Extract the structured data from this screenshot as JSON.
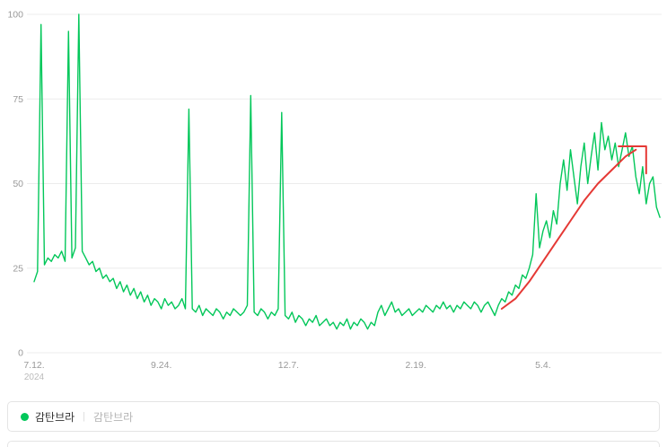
{
  "chart": {
    "yticks": [
      0,
      25,
      50,
      75,
      100
    ],
    "xticks": [
      {
        "label": "7.12.",
        "day": 0,
        "sublabel": "2024"
      },
      {
        "label": "9.24.",
        "day": 74,
        "sublabel": ""
      },
      {
        "label": "12.7.",
        "day": 148,
        "sublabel": ""
      },
      {
        "label": "2.19.",
        "day": 222,
        "sublabel": ""
      },
      {
        "label": "5.4.",
        "day": 296,
        "sublabel": ""
      }
    ],
    "grid_color": "#ececec",
    "axis_text_color": "#999999",
    "sub_text_color": "#bbbbbb"
  },
  "chart_data": {
    "type": "line",
    "title": "",
    "xlabel": "",
    "ylabel": "",
    "ylim": [
      0,
      100
    ],
    "x_range_days": 365,
    "x_start_label": "7.12.2024",
    "step_days": 2,
    "grid": true,
    "legend_position": "bottom",
    "series": [
      {
        "name": "감탄브라",
        "color": "#03c75a",
        "values": [
          21,
          24,
          97,
          26,
          28,
          27,
          29,
          28,
          30,
          27,
          95,
          28,
          31,
          100,
          30,
          28,
          26,
          27,
          24,
          25,
          22,
          23,
          21,
          22,
          19,
          21,
          18,
          20,
          17,
          19,
          16,
          18,
          15,
          17,
          14,
          16,
          15,
          13,
          16,
          14,
          15,
          13,
          14,
          16,
          13,
          72,
          13,
          12,
          14,
          11,
          13,
          12,
          11,
          13,
          12,
          10,
          12,
          11,
          13,
          12,
          11,
          12,
          14,
          76,
          12,
          11,
          13,
          12,
          10,
          12,
          11,
          13,
          71,
          11,
          10,
          12,
          9,
          11,
          10,
          8,
          10,
          9,
          11,
          8,
          9,
          10,
          8,
          9,
          7,
          9,
          8,
          10,
          7,
          9,
          8,
          10,
          9,
          7,
          9,
          8,
          12,
          14,
          11,
          13,
          15,
          12,
          13,
          11,
          12,
          13,
          11,
          12,
          13,
          12,
          14,
          13,
          12,
          14,
          13,
          15,
          13,
          14,
          12,
          14,
          13,
          15,
          14,
          13,
          15,
          14,
          12,
          14,
          15,
          13,
          11,
          14,
          16,
          15,
          18,
          17,
          20,
          19,
          23,
          22,
          25,
          29,
          47,
          31,
          36,
          39,
          34,
          42,
          38,
          50,
          57,
          48,
          60,
          52,
          44,
          55,
          62,
          50,
          58,
          65,
          54,
          68,
          60,
          64,
          57,
          62,
          55,
          60,
          65,
          58,
          61,
          52,
          47,
          55,
          44,
          50,
          52,
          43,
          40
        ]
      }
    ],
    "annotation": {
      "name": "trend-arrow",
      "color": "#e53935",
      "segments": [
        [
          [
            272,
            13
          ],
          [
            280,
            16
          ],
          [
            288,
            21
          ],
          [
            296,
            27
          ],
          [
            304,
            33
          ],
          [
            312,
            39
          ],
          [
            320,
            45
          ],
          [
            328,
            50
          ],
          [
            336,
            54
          ],
          [
            344,
            58
          ],
          [
            350,
            60
          ]
        ],
        [
          [
            340,
            61
          ],
          [
            356,
            61
          ],
          [
            356,
            53
          ]
        ]
      ]
    }
  },
  "legend": {
    "divider": "|",
    "items": [
      {
        "label": "감탄브라",
        "color": "#03c75a",
        "muted": false
      },
      {
        "label": "감탄브라",
        "color": "",
        "muted": true
      }
    ]
  }
}
